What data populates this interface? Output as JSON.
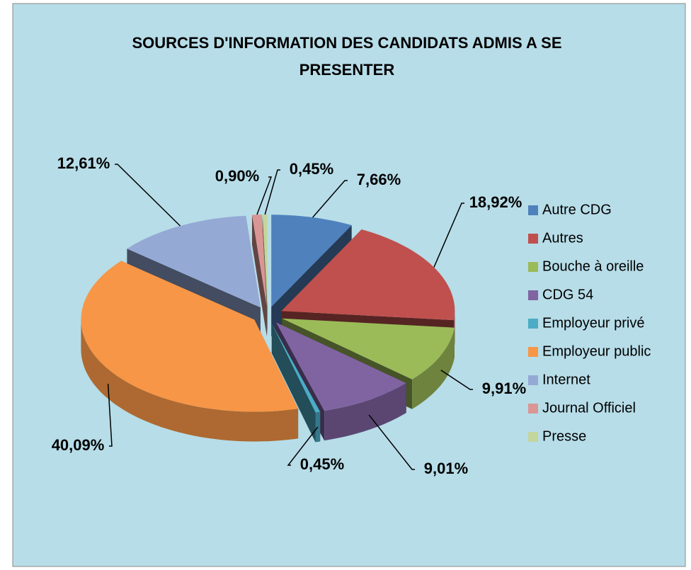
{
  "chart_data": {
    "type": "pie3d",
    "title": "SOURCES D'INFORMATION DES CANDIDATS ADMIS A SE PRESENTER",
    "categories": [
      "Autre CDG",
      "Autres",
      "Bouche à oreille",
      "CDG 54",
      "Employeur privé",
      "Employeur public",
      "Internet",
      "Journal Officiel",
      "Presse"
    ],
    "values": [
      7.66,
      18.92,
      9.91,
      9.01,
      0.45,
      40.09,
      12.61,
      0.9,
      0.45
    ],
    "value_labels": [
      "7,66%",
      "18,92%",
      "9,91%",
      "9,01%",
      "0,45%",
      "40,09%",
      "12,61%",
      "0,90%",
      "0,45%"
    ],
    "colors": [
      "#4f81bd",
      "#c0504d",
      "#9bbb59",
      "#8064a2",
      "#4bacc6",
      "#f79646",
      "#95a9d5",
      "#d99694",
      "#c3d69b"
    ],
    "legend": "right"
  }
}
